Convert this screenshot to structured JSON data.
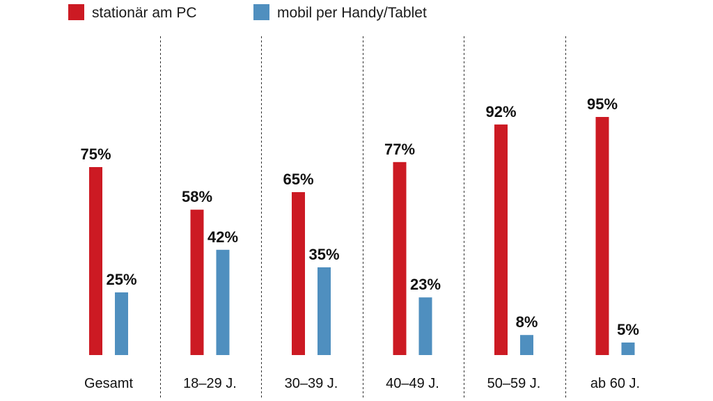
{
  "chart_data": {
    "type": "bar",
    "title": "",
    "xlabel": "",
    "ylabel": "",
    "ylim": [
      0,
      100
    ],
    "grid": false,
    "legend_position": "top-left",
    "categories": [
      "Gesamt",
      "18–29 J.",
      "30–39 J.",
      "40–49 J.",
      "50–59 J.",
      "ab 60 J."
    ],
    "series": [
      {
        "name": "stationär am PC",
        "color": "#cc1a23",
        "values": [
          75,
          58,
          65,
          77,
          92,
          95
        ],
        "labels": [
          "75%",
          "58%",
          "65%",
          "77%",
          "92%",
          "95%"
        ]
      },
      {
        "name": "mobil per Handy/Tablet",
        "color": "#4f8fbf",
        "values": [
          25,
          42,
          35,
          23,
          8,
          5
        ],
        "labels": [
          "25%",
          "42%",
          "35%",
          "23%",
          "8%",
          "5%"
        ]
      }
    ]
  }
}
